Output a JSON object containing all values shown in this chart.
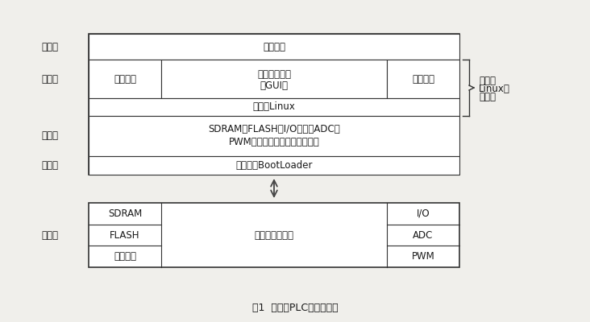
{
  "bg_color": "#f0efeb",
  "box_fc": "white",
  "border_color": "#333333",
  "text_color": "#1a1a1a",
  "font_size": 8.5,
  "title": "图1  嵌入式PLC系统结构图",
  "label_yingyong": "应用层",
  "label_ruanjian": "软件层",
  "label_qudong": "驱动层",
  "label_yindao": "引导层",
  "label_yinjian": "硬件层",
  "label_linux_outer_line1": "嵌入式",
  "label_linux_outer_line2": "Linux操",
  "label_linux_outer_line3": "作系统",
  "text_app": "应用程序",
  "text_file": "文件系统",
  "text_gui_line1": "图形用户接口",
  "text_gui_line2": "（GUI）",
  "text_task": "任务管理",
  "text_linux": "嵌入式Linux",
  "text_driver_line1": "SDRAM、FLASH、I/O模块、ADC、",
  "text_driver_line2": "PWM、通用接口等片内外设驱动",
  "text_boot": "引导程序BootLoader",
  "text_sdram": "SDRAM",
  "text_flash": "FLASH",
  "text_port": "通用接口",
  "text_cpu": "嵌入式微处理器",
  "text_io": "I/O",
  "text_adc": "ADC",
  "text_pwm": "PWM"
}
